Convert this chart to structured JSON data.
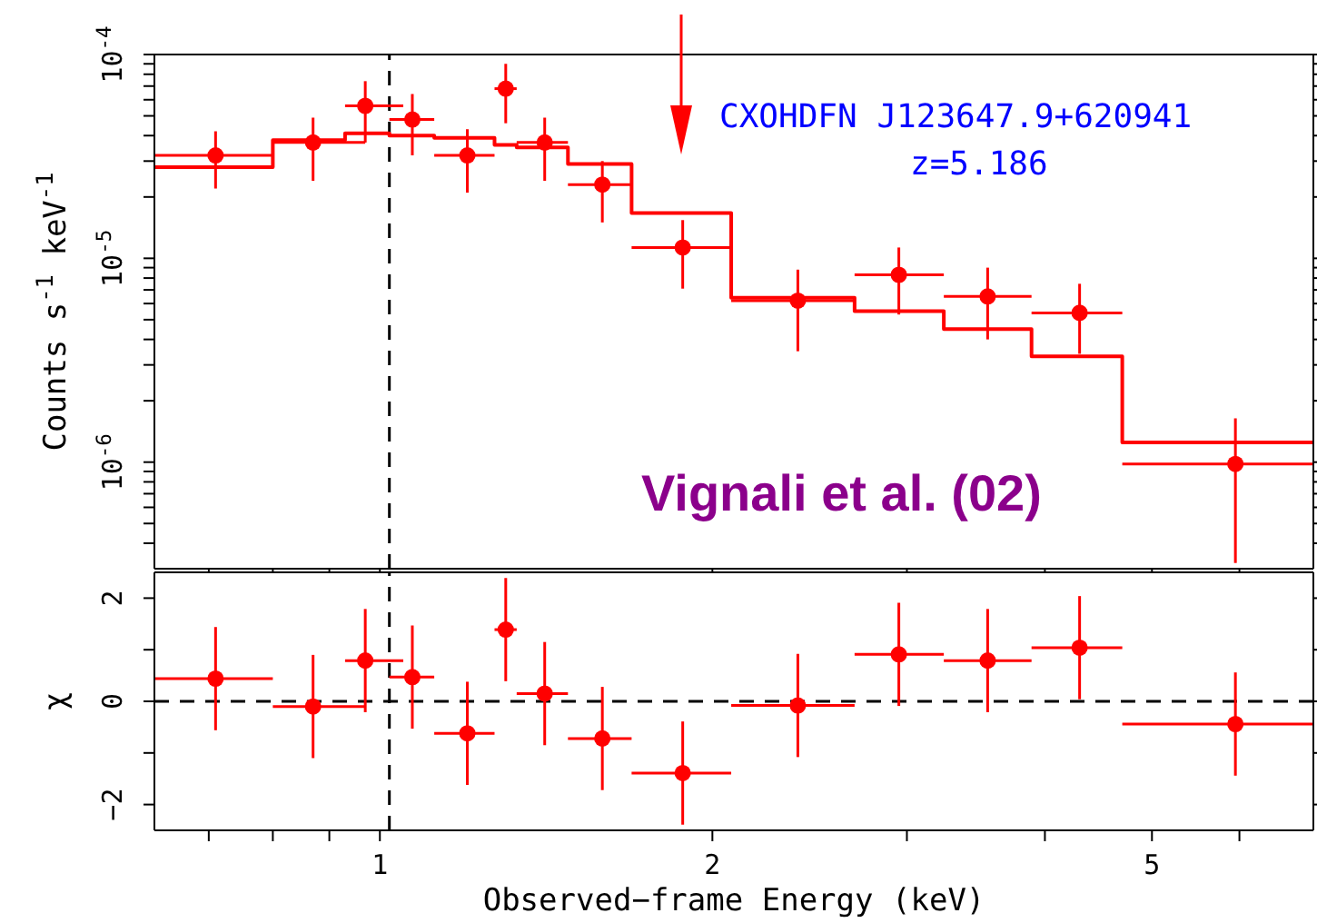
{
  "chart_data": [
    {
      "type": "scatter",
      "ylabel": "Counts s$^{-1}$ keV$^{-1}$",
      "annotations": [
        "CXOHDFN J123647.9+620941",
        "z=5.186",
        "Vignali et al. (02)"
      ],
      "log": "xy",
      "xlim": [
        0.625,
        7.0
      ],
      "ylim": [
        3e-07,
        0.0001
      ],
      "xticks": [
        {
          "value": 0.7,
          "label": null
        },
        {
          "value": 0.8,
          "label": null
        },
        {
          "value": 0.9,
          "label": null
        },
        1,
        2,
        {
          "value": 3,
          "label": null
        },
        {
          "value": 4,
          "label": null
        },
        5,
        {
          "value": 6,
          "label": null
        }
      ],
      "yticks": [
        {
          "value": 0.0001,
          "label": "10$^{-4}$"
        },
        {
          "value": 9e-05,
          "label": null
        },
        {
          "value": 8e-05,
          "label": null
        },
        {
          "value": 7e-05,
          "label": null
        },
        {
          "value": 6e-05,
          "label": null
        },
        {
          "value": 5e-05,
          "label": null
        },
        {
          "value": 4e-05,
          "label": null
        },
        {
          "value": 3e-05,
          "label": null
        },
        {
          "value": 2e-05,
          "label": null
        },
        {
          "value": 1e-05,
          "label": "10$^{-5}$"
        },
        {
          "value": 9e-06,
          "label": null
        },
        {
          "value": 8e-06,
          "label": null
        },
        {
          "value": 7e-06,
          "label": null
        },
        {
          "value": 6e-06,
          "label": null
        },
        {
          "value": 5e-06,
          "label": null
        },
        {
          "value": 4e-06,
          "label": null
        },
        {
          "value": 3e-06,
          "label": null
        },
        {
          "value": 2e-06,
          "label": null
        },
        {
          "value": 1e-06,
          "label": "10$^{-6}$"
        },
        {
          "value": 9e-07,
          "label": null
        },
        {
          "value": 8e-07,
          "label": null
        },
        {
          "value": 7e-07,
          "label": null
        },
        {
          "value": 6e-07,
          "label": null
        },
        {
          "value": 5e-07,
          "label": null
        },
        {
          "value": 4e-07,
          "label": null
        }
      ],
      "tick_labels": "y",
      "ref_lines": [
        {
          "axis": "x",
          "value": 1.02,
          "label": null,
          "color": "#000000",
          "line_style": "dashed"
        }
      ],
      "series": [
        {
          "marker": "circle",
          "color": "#ff0000",
          "x": [
            0.71,
            0.87,
            0.97,
            1.07,
            1.2,
            1.3,
            1.41,
            1.59,
            1.88,
            2.39,
            2.95,
            3.55,
            4.3,
            5.95
          ],
          "values": [
            3.2e-05,
            3.7e-05,
            5.6e-05,
            4.8e-05,
            3.2e-05,
            6.8e-05,
            3.7e-05,
            2.3e-05,
            1.13e-05,
            6.2e-06,
            8.3e-06,
            6.5e-06,
            5.4e-06,
            9.8e-07
          ],
          "errors": [
            [
              2.2e-05,
              4.2e-05
            ],
            [
              2.4e-05,
              4.9e-05
            ],
            [
              3.7e-05,
              7.4e-05
            ],
            [
              3.2e-05,
              6.4e-05
            ],
            [
              2.1e-05,
              4.3e-05
            ],
            [
              4.6e-05,
              9e-05
            ],
            [
              2.4e-05,
              4.9e-05
            ],
            [
              1.5e-05,
              3e-05
            ],
            [
              7.1e-06,
              1.54e-05
            ],
            [
              3.5e-06,
              8.8e-06
            ],
            [
              5.3e-06,
              1.13e-05
            ],
            [
              4e-06,
              9e-06
            ],
            [
              3.4e-06,
              7.5e-06
            ],
            [
              3.2e-07,
              1.64e-06
            ]
          ],
          "xerrors": [
            [
              0.625,
              0.8
            ],
            [
              0.8,
              0.97
            ],
            [
              0.93,
              1.05
            ],
            [
              1.02,
              1.12
            ],
            [
              1.12,
              1.27
            ],
            [
              1.27,
              1.33
            ],
            [
              1.33,
              1.48
            ],
            [
              1.48,
              1.69
            ],
            [
              1.69,
              2.08
            ],
            [
              2.08,
              2.69
            ],
            [
              2.69,
              3.24
            ],
            [
              3.24,
              3.89
            ],
            [
              3.89,
              4.7
            ],
            [
              4.7,
              7.0
            ]
          ]
        },
        {
          "type": "step",
          "color": "#ff0000",
          "x": [
            0.625,
            0.8,
            0.93,
            1.02,
            1.12,
            1.27,
            1.33,
            1.48,
            1.69,
            2.08,
            2.69,
            3.24,
            3.89,
            4.7,
            7.0
          ],
          "values": [
            2.8e-05,
            3.8e-05,
            4.1e-05,
            4e-05,
            3.9e-05,
            3.6e-05,
            3.5e-05,
            2.9e-05,
            1.67e-05,
            6.4e-06,
            5.5e-06,
            4.5e-06,
            3.3e-06,
            1.25e-06,
            1.25e-06
          ]
        }
      ]
    },
    {
      "type": "scatter",
      "xlabel": "Observed−frame Energy (keV)",
      "ylabel": "χ",
      "log": "x",
      "xlim": [
        0.625,
        7.0
      ],
      "ylim": [
        -2.5,
        2.5
      ],
      "xticks": [
        {
          "value": 0.7,
          "label": null
        },
        {
          "value": 0.8,
          "label": null
        },
        {
          "value": 0.9,
          "label": null
        },
        1,
        2,
        {
          "value": 3,
          "label": null
        },
        {
          "value": 4,
          "label": null
        },
        5,
        {
          "value": 6,
          "label": null
        }
      ],
      "yticks": [
        {
          "value": -2,
          "label": "−2"
        },
        {
          "value": -1,
          "label": null
        },
        0,
        {
          "value": 1,
          "label": null
        },
        2
      ],
      "ref_lines": [
        {
          "axis": "x",
          "value": 1.02,
          "label": null,
          "color": "#000000",
          "line_style": "dashed"
        },
        {
          "axis": "y",
          "value": 0,
          "label": null,
          "color": "#000000",
          "line_style": "dashed"
        }
      ],
      "series": [
        {
          "marker": "circle",
          "color": "#ff0000",
          "x": [
            0.71,
            0.87,
            0.97,
            1.07,
            1.2,
            1.3,
            1.41,
            1.59,
            1.88,
            2.39,
            2.95,
            3.55,
            4.3,
            5.95
          ],
          "values": [
            0.44,
            -0.1,
            0.79,
            0.47,
            -0.62,
            1.39,
            0.15,
            -0.72,
            -1.39,
            -0.08,
            0.91,
            0.79,
            1.04,
            -0.44
          ],
          "errors": [
            1,
            1,
            1,
            1,
            1,
            1,
            1,
            1,
            1,
            1,
            1,
            1,
            1,
            1
          ],
          "xerrors": [
            [
              0.625,
              0.8
            ],
            [
              0.8,
              0.97
            ],
            [
              0.93,
              1.05
            ],
            [
              1.02,
              1.12
            ],
            [
              1.12,
              1.27
            ],
            [
              1.27,
              1.33
            ],
            [
              1.33,
              1.48
            ],
            [
              1.48,
              1.69
            ],
            [
              1.69,
              2.08
            ],
            [
              2.08,
              2.69
            ],
            [
              2.69,
              3.24
            ],
            [
              3.24,
              3.89
            ],
            [
              3.89,
              4.7
            ],
            [
              4.7,
              7.0
            ]
          ]
        }
      ]
    }
  ]
}
